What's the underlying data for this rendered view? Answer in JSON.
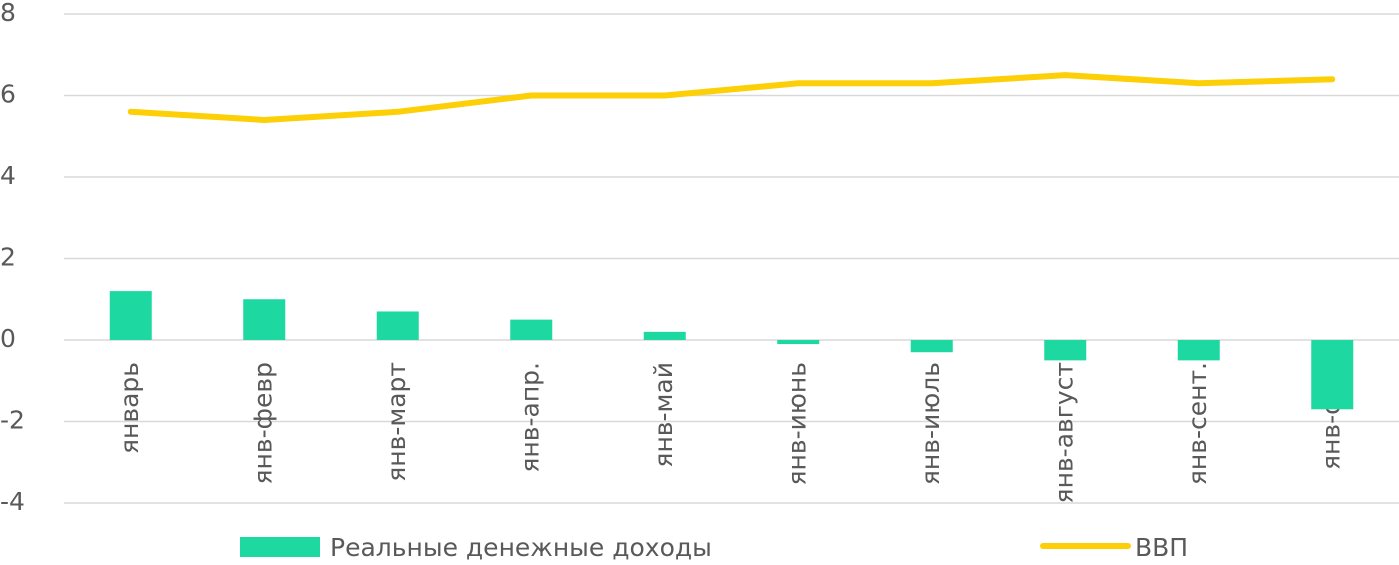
{
  "chart_data": {
    "type": "bar",
    "categories": [
      "январь",
      "янв-февр",
      "янв-март",
      "янв-апр.",
      "янв-май",
      "янв-июнь",
      "янв-июль",
      "янв-август",
      "янв-сент.",
      "янв-окт."
    ],
    "series": [
      {
        "name": "Реальные денежные доходы",
        "type": "bar",
        "color": "#1ed8a2",
        "values": [
          1.2,
          1.0,
          0.7,
          0.5,
          0.2,
          -0.1,
          -0.3,
          -0.5,
          -0.5,
          -1.7
        ]
      },
      {
        "name": "ВВП",
        "type": "line",
        "color": "#fccf07",
        "values": [
          5.6,
          5.4,
          5.6,
          6.0,
          6.0,
          6.3,
          6.3,
          6.5,
          6.3,
          6.4
        ]
      }
    ],
    "ylim": [
      -4,
      8
    ],
    "yticks": [
      -4,
      -2,
      0,
      2,
      4,
      6,
      8
    ],
    "grid": true,
    "legend": "bottom"
  }
}
